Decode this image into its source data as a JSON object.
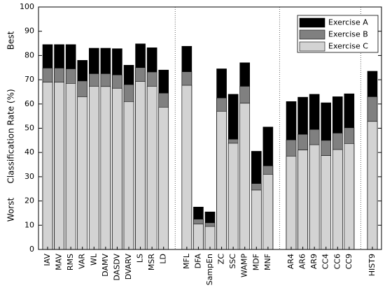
{
  "chart_data": {
    "type": "bar",
    "ylabel": "Classification Rate (%)",
    "annotations": [
      "Best",
      "Worst"
    ],
    "categories": [
      "IAV",
      "MAV",
      "RMS",
      "VAR",
      "WL",
      "DAMV",
      "DASDV",
      "DVARV",
      "LS",
      "MSR",
      "LD",
      null,
      "MFL",
      "DFA",
      "SampEn",
      "ZC",
      "SSC",
      "WAMP",
      "MDF",
      "MNF",
      null,
      "AR4",
      "AR6",
      "AR9",
      "CC4",
      "CC6",
      "CC9",
      null,
      "HIST9"
    ],
    "series": [
      {
        "name": "Exercise A",
        "color": "#000000",
        "values": [
          84.5,
          84.5,
          84.5,
          78,
          83,
          83,
          82.8,
          76,
          84.8,
          83.2,
          74,
          null,
          83.8,
          17.5,
          15.5,
          74.5,
          64,
          77,
          40.5,
          50.5,
          null,
          61,
          62.8,
          64,
          60.5,
          63,
          64.2,
          null,
          73.5
        ]
      },
      {
        "name": "Exercise B",
        "color": "#808080",
        "values": [
          74.8,
          74.8,
          74.5,
          69.5,
          72.5,
          72.5,
          72,
          68,
          75,
          73.2,
          64.5,
          null,
          73.3,
          12.5,
          11,
          62.5,
          45.5,
          67.3,
          27.2,
          34.5,
          null,
          45.2,
          47.5,
          49.5,
          45,
          48,
          50.2,
          null,
          63
        ]
      },
      {
        "name": "Exercise C",
        "color": "#d3d3d3",
        "values": [
          69,
          69,
          68.5,
          63,
          67.3,
          67.2,
          66.5,
          61,
          69.3,
          67.3,
          58.7,
          null,
          67.7,
          10.5,
          9.5,
          57,
          43.8,
          60.3,
          24.5,
          31,
          null,
          38.5,
          41,
          43.2,
          38.7,
          41.2,
          43.7,
          null,
          52.8
        ]
      }
    ],
    "ylim": [
      0,
      100
    ],
    "yticks": [
      0,
      10,
      20,
      30,
      40,
      50,
      60,
      70,
      80,
      90,
      100
    ],
    "legend": "upper right"
  }
}
